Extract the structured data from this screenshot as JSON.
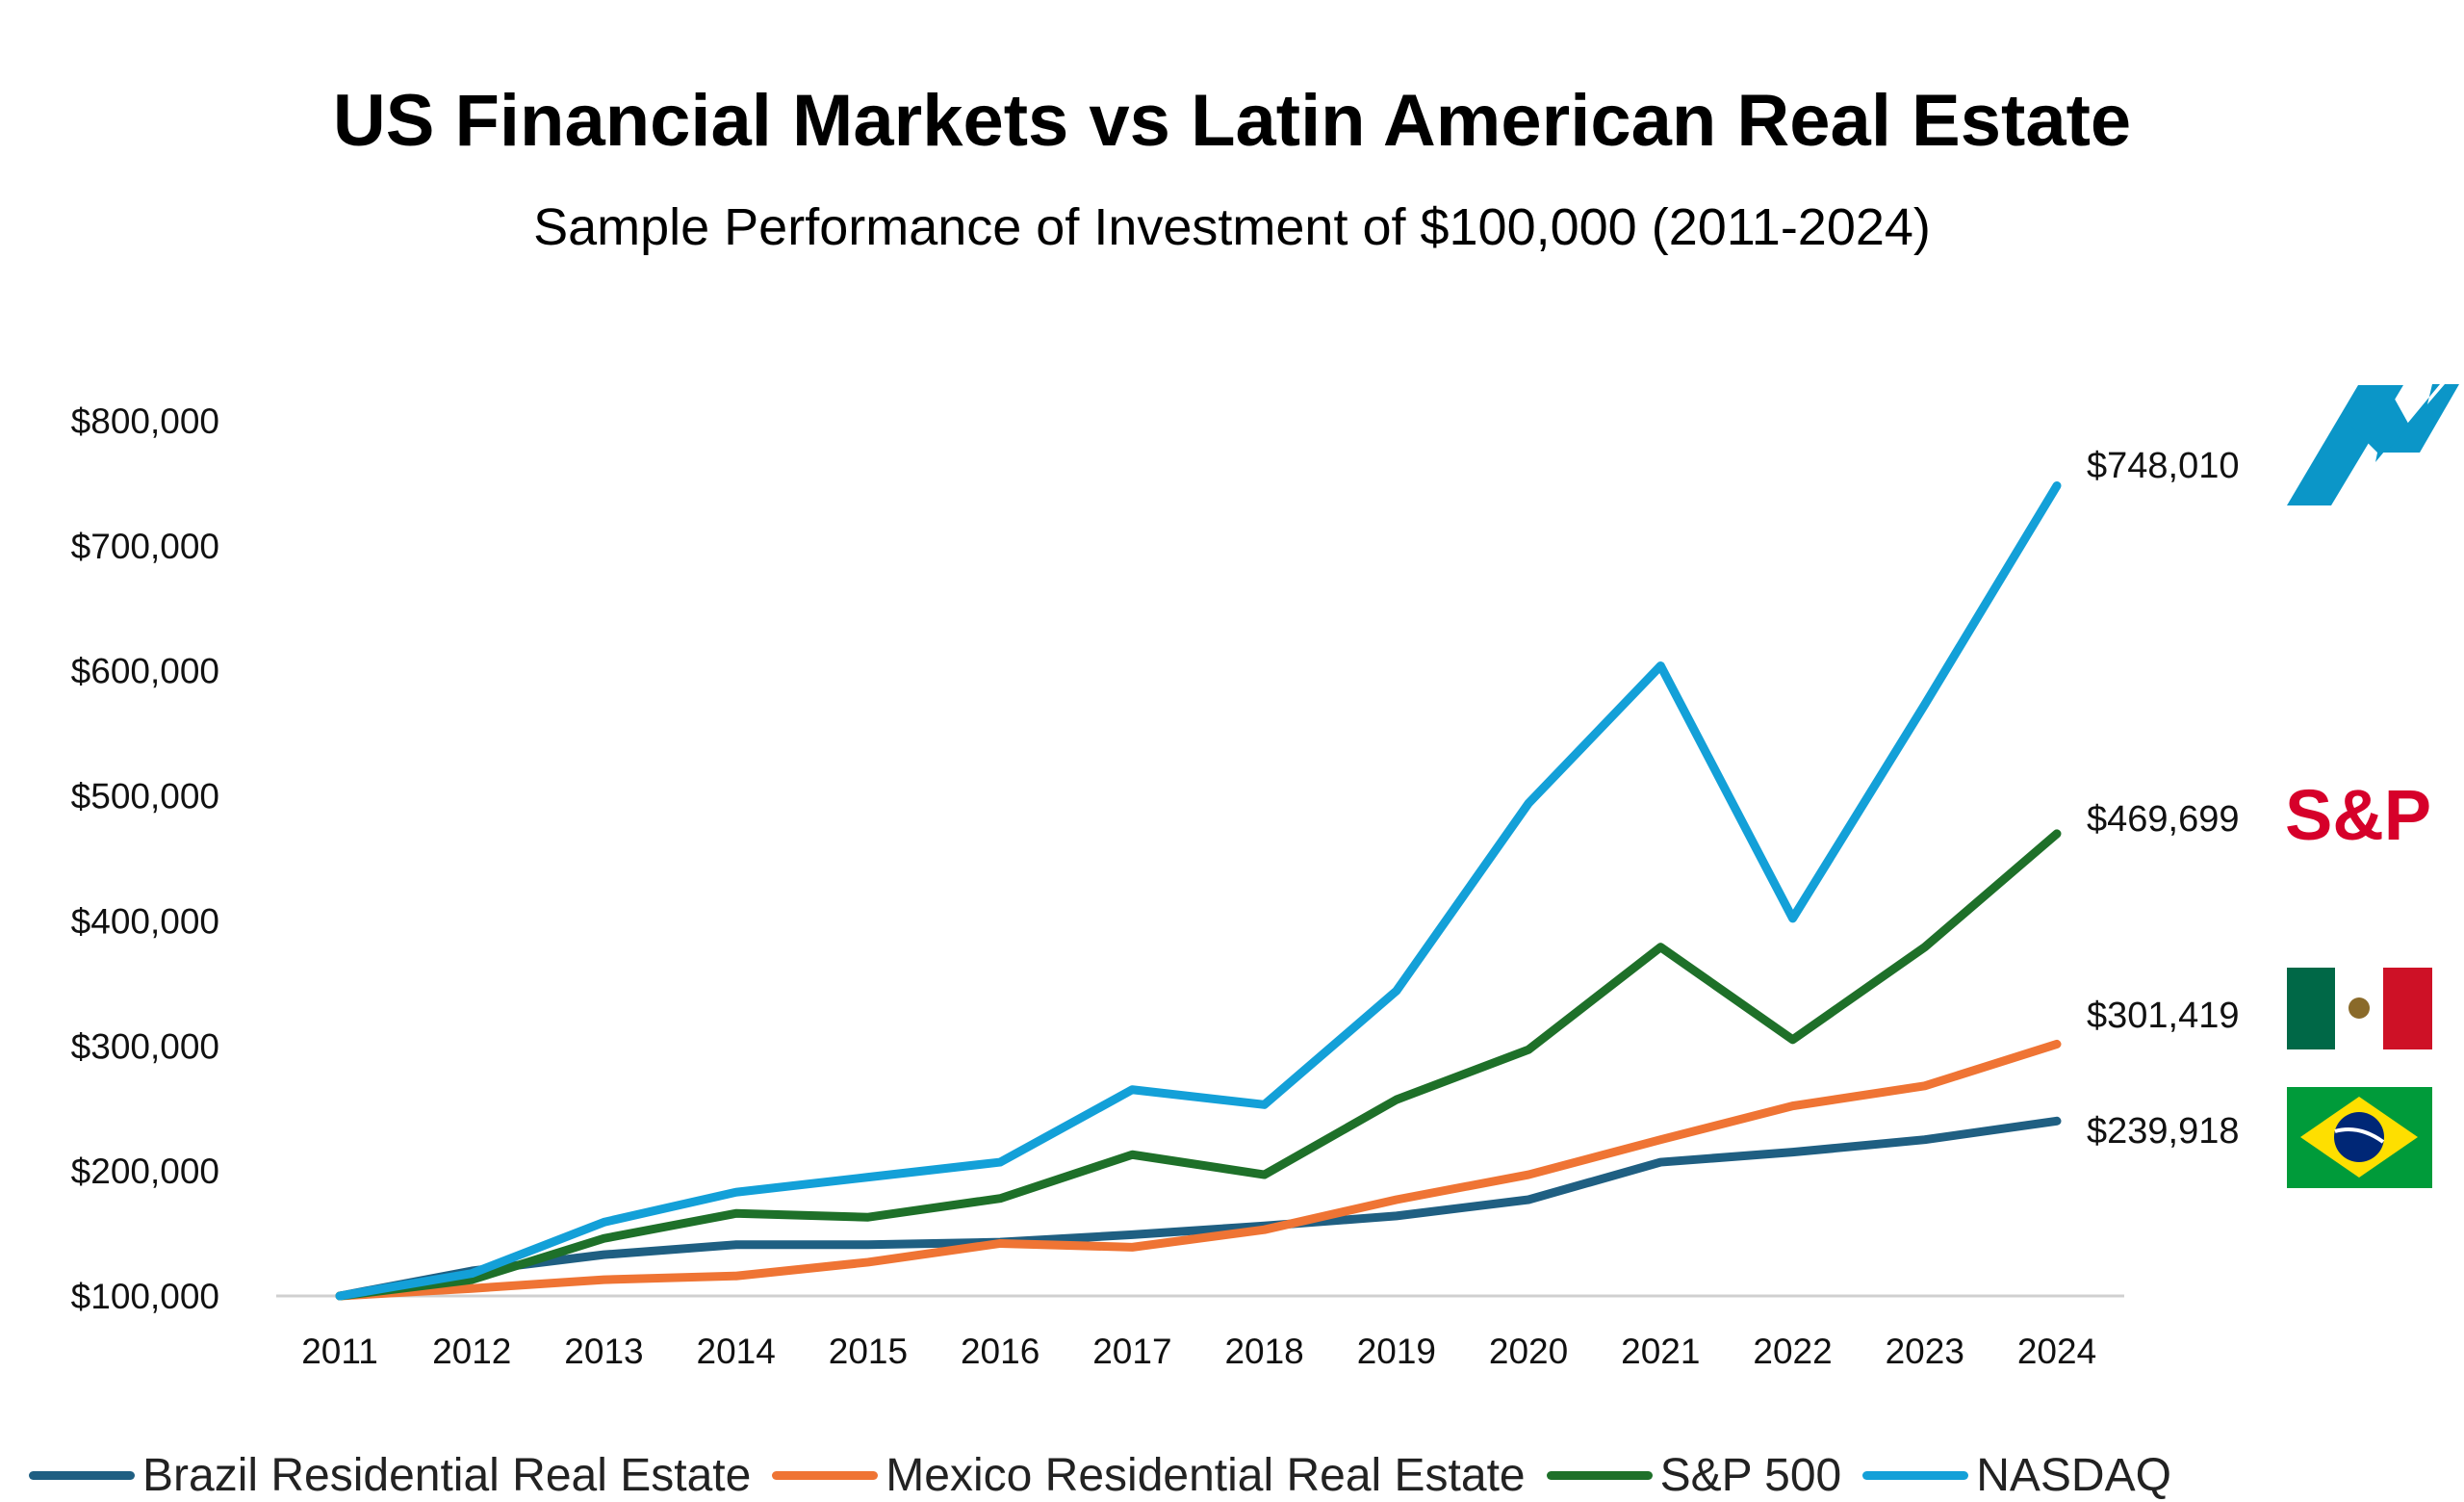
{
  "chart_data": {
    "type": "line",
    "title": "US Financial Markets vs Latin American Real Estate",
    "subtitle": "Sample Performance of Investment of $100,000 (2011-2024)",
    "xlabel": "",
    "ylabel": "",
    "ylim": [
      100000,
      800000
    ],
    "yticks": [
      100000,
      200000,
      300000,
      400000,
      500000,
      600000,
      700000,
      800000
    ],
    "ytick_labels": [
      "$100,000",
      "$200,000",
      "$300,000",
      "$400,000",
      "$500,000",
      "$600,000",
      "$700,000",
      "$800,000"
    ],
    "categories": [
      "2011",
      "2012",
      "2013",
      "2014",
      "2015",
      "2016",
      "2017",
      "2018",
      "2019",
      "2020",
      "2021",
      "2022",
      "2023",
      "2024"
    ],
    "grid": false,
    "legend_position": "bottom",
    "series": [
      {
        "name": "Brazil Residential Real Estate",
        "color": "#1f5f82",
        "end_label": "$239,918",
        "values": [
          100000,
          120000,
          133000,
          141000,
          141000,
          143000,
          149000,
          156000,
          164000,
          177000,
          207000,
          215000,
          225000,
          239918
        ]
      },
      {
        "name": "Mexico Residential Real Estate",
        "color": "#ef7434",
        "end_label": "$301,419",
        "values": [
          100000,
          106000,
          113000,
          116000,
          127000,
          142000,
          139000,
          153000,
          177000,
          197000,
          225000,
          252000,
          268000,
          301419
        ]
      },
      {
        "name": "S&P 500",
        "color": "#1e7029",
        "end_label": "$469,699",
        "values": [
          100000,
          113000,
          146000,
          166000,
          163000,
          178000,
          213000,
          197000,
          257000,
          297000,
          379000,
          305000,
          379000,
          469699
        ]
      },
      {
        "name": "NASDAQ",
        "color": "#13a0d8",
        "end_label": "$748,010",
        "values": [
          100000,
          118000,
          159000,
          183000,
          195000,
          207000,
          265000,
          253000,
          344000,
          494000,
          604000,
          402000,
          573000,
          748010
        ]
      }
    ],
    "logos": {
      "sp_text": "S&P",
      "nasdaq": "nasdaq-logo",
      "mexico": "mexico-flag",
      "brazil": "brazil-flag"
    }
  }
}
